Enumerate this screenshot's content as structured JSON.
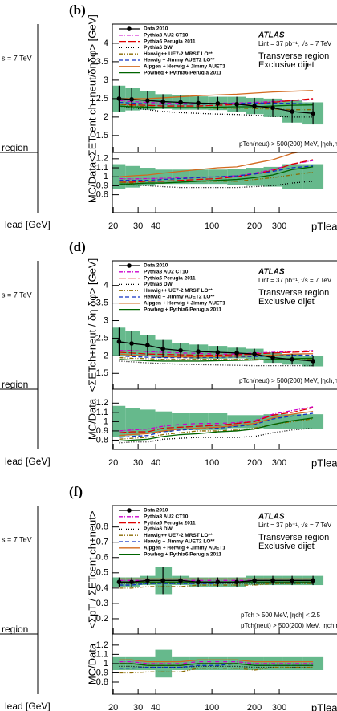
{
  "chart_data": [
    {
      "type": "line",
      "panel": "(b)",
      "ylabel": "<ΣETcent ch+neut/δηδφ> [GeV]",
      "xlabel": "pTlead [GeV]",
      "ratio_ylabel": "MC/Data",
      "atlas": [
        "ATLAS",
        "Lint = 37 pb⁻¹, √s = 7 TeV",
        "Transverse region",
        "Exclusive dijet"
      ],
      "cuts": [
        "pTch(neut) > 500(200) MeV, |ηch,neut| < 2.5"
      ],
      "xlog": true,
      "xlim": [
        19.7,
        900
      ],
      "xticks": [
        20,
        30,
        40,
        100,
        200,
        300
      ],
      "ylim": [
        1.04,
        4.52
      ],
      "yticks": [
        1.5,
        2,
        2.5,
        3,
        3.5,
        4
      ],
      "ratio_ylim": [
        0.6,
        1.27
      ],
      "ratio_yticks": [
        0.8,
        0.9,
        1,
        1.1,
        1.2
      ],
      "band_color": "#66b98c",
      "legend": "upper left",
      "x": [
        22,
        27,
        35,
        45,
        60,
        80,
        110,
        150,
        200,
        270,
        370,
        520
      ],
      "series": [
        {
          "name": "Data 2010",
          "color": "#000000",
          "values": [
            2.5,
            2.48,
            2.45,
            2.42,
            2.4,
            2.38,
            2.37,
            2.35,
            2.3,
            2.25,
            2.15,
            2.1
          ],
          "errors": [
            0.35,
            0.3,
            0.25,
            0.2,
            0.2,
            0.18,
            0.18,
            0.2,
            0.22,
            0.25,
            0.3,
            0.3
          ],
          "ratio_errors": [
            0.14,
            0.12,
            0.1,
            0.08,
            0.08,
            0.08,
            0.08,
            0.09,
            0.1,
            0.11,
            0.14,
            0.14
          ]
        },
        {
          "name": "Pythia8 AU2 CT10",
          "color": "#cc00cc",
          "dash": "5 2 1 2",
          "values": [
            2.45,
            2.42,
            2.4,
            2.38,
            2.37,
            2.37,
            2.38,
            2.38,
            2.4,
            2.42,
            2.45,
            2.47
          ],
          "ratio_values": [
            0.98,
            0.976,
            0.98,
            0.983,
            0.99,
            0.996,
            1.0,
            1.01,
            1.04,
            1.08,
            1.14,
            1.18
          ]
        },
        {
          "name": "Pythia6 Perugia 2011",
          "color": "#e00000",
          "dash": "9 3",
          "values": [
            2.35,
            2.33,
            2.32,
            2.3,
            2.3,
            2.3,
            2.32,
            2.34,
            2.36,
            2.4,
            2.45,
            2.5
          ],
          "ratio_values": [
            0.94,
            0.94,
            0.95,
            0.95,
            0.96,
            0.97,
            0.98,
            1.0,
            1.03,
            1.07,
            1.14,
            1.19
          ]
        },
        {
          "name": "Pythia6 DW",
          "color": "#000000",
          "dash": "1 2",
          "values": [
            2.3,
            2.25,
            2.2,
            2.15,
            2.12,
            2.1,
            2.08,
            2.07,
            2.05,
            2.02,
            2.0,
            2.0
          ],
          "ratio_values": [
            0.92,
            0.91,
            0.9,
            0.89,
            0.88,
            0.88,
            0.88,
            0.88,
            0.89,
            0.9,
            0.93,
            0.95
          ]
        },
        {
          "name": "Herwig++ UE7-2 MRST LO**",
          "color": "#8a6a00",
          "dash": "5 2 1 2 1 2",
          "values": [
            2.35,
            2.3,
            2.28,
            2.26,
            2.25,
            2.25,
            2.24,
            2.24,
            2.23,
            2.22,
            2.2,
            2.2
          ],
          "ratio_values": [
            0.94,
            0.93,
            0.93,
            0.93,
            0.94,
            0.95,
            0.95,
            0.95,
            0.97,
            0.99,
            1.02,
            1.05
          ]
        },
        {
          "name": "Herwig + Jimmy AUET2 LO**",
          "color": "#1030c0",
          "dash": "5 3",
          "values": [
            2.4,
            2.38,
            2.36,
            2.35,
            2.35,
            2.35,
            2.36,
            2.37,
            2.38,
            2.38,
            2.37,
            2.35
          ],
          "ratio_values": [
            0.96,
            0.96,
            0.96,
            0.97,
            0.98,
            0.99,
            1.0,
            1.01,
            1.03,
            1.06,
            1.1,
            1.12
          ]
        },
        {
          "name": "Alpgen + Herwig + Jimmy AUET1",
          "color": "#d2691e",
          "values": [
            2.5,
            2.5,
            2.5,
            2.52,
            2.55,
            2.58,
            2.6,
            2.62,
            2.65,
            2.68,
            2.7,
            2.72
          ],
          "ratio_values": [
            1.0,
            1.01,
            1.02,
            1.04,
            1.06,
            1.08,
            1.1,
            1.11,
            1.15,
            1.19,
            1.26,
            1.3
          ]
        },
        {
          "name": "Powheg + Pythia6 Perugia 2011",
          "color": "#006400",
          "values": [
            2.3,
            2.28,
            2.27,
            2.26,
            2.26,
            2.26,
            2.27,
            2.28,
            2.28,
            2.3,
            2.32,
            2.33
          ],
          "ratio_values": [
            0.92,
            0.92,
            0.93,
            0.93,
            0.94,
            0.95,
            0.96,
            0.97,
            0.99,
            1.02,
            1.08,
            1.11
          ]
        }
      ]
    },
    {
      "type": "line",
      "panel": "(d)",
      "ylabel": "<ΣETch+neut / δη δφ> [GeV]",
      "xlabel": "pTlead [GeV]",
      "ratio_ylabel": "MC/Data",
      "atlas": [
        "ATLAS",
        "Lint = 37 pb⁻¹, √s = 7 TeV",
        "Transverse region",
        "Exclusive dijet"
      ],
      "cuts": [
        "pTch(neut) > 500(200) MeV, |ηch,neut| < 4.8"
      ],
      "xlog": true,
      "xlim": [
        19.7,
        900
      ],
      "xticks": [
        20,
        30,
        40,
        100,
        200,
        300
      ],
      "ylim": [
        1.05,
        4.7
      ],
      "yticks": [
        1.5,
        2,
        2.5,
        3,
        3.5,
        4
      ],
      "ratio_ylim": [
        0.7,
        1.35
      ],
      "ratio_yticks": [
        0.8,
        0.9,
        1,
        1.1,
        1.2
      ],
      "band_color": "#66b98c",
      "legend": "upper left",
      "x": [
        22,
        27,
        35,
        45,
        60,
        80,
        110,
        150,
        200,
        270,
        370,
        520
      ],
      "series": [
        {
          "name": "Data 2010",
          "color": "#000000",
          "values": [
            2.4,
            2.35,
            2.3,
            2.2,
            2.15,
            2.12,
            2.1,
            2.08,
            2.05,
            1.95,
            1.9,
            1.85
          ],
          "errors": [
            0.4,
            0.35,
            0.3,
            0.25,
            0.2,
            0.2,
            0.18,
            0.15,
            0.15,
            0.15,
            0.15,
            0.15
          ],
          "ratio_errors": [
            0.17,
            0.15,
            0.13,
            0.11,
            0.09,
            0.09,
            0.09,
            0.07,
            0.07,
            0.08,
            0.08,
            0.08
          ]
        },
        {
          "name": "Pythia8 AU2 CT10",
          "color": "#cc00cc",
          "dash": "5 2 1 2",
          "values": [
            2.15,
            2.15,
            2.12,
            2.1,
            2.08,
            2.07,
            2.05,
            2.05,
            2.08,
            2.1,
            2.12,
            2.15
          ],
          "ratio_values": [
            0.9,
            0.91,
            0.92,
            0.95,
            0.97,
            0.98,
            0.98,
            0.99,
            1.01,
            1.08,
            1.12,
            1.16
          ]
        },
        {
          "name": "Pythia6 Perugia 2011",
          "color": "#e00000",
          "dash": "9 3",
          "values": [
            2.1,
            2.08,
            2.05,
            2.04,
            2.03,
            2.02,
            2.02,
            2.03,
            2.05,
            2.08,
            2.1,
            2.12
          ],
          "ratio_values": [
            0.88,
            0.89,
            0.89,
            0.93,
            0.94,
            0.95,
            0.96,
            0.98,
            1.0,
            1.07,
            1.1,
            1.15
          ]
        },
        {
          "name": "Pythia6 DW",
          "color": "#000000",
          "dash": "1 2",
          "values": [
            1.85,
            1.83,
            1.8,
            1.78,
            1.76,
            1.75,
            1.74,
            1.73,
            1.72,
            1.72,
            1.72,
            1.72
          ],
          "ratio_values": [
            0.77,
            0.78,
            0.78,
            0.81,
            0.82,
            0.83,
            0.83,
            0.83,
            0.84,
            0.88,
            0.91,
            0.93
          ]
        },
        {
          "name": "Herwig++ UE7-2 MRST LO**",
          "color": "#8a6a00",
          "dash": "5 2 1 2 1 2",
          "values": [
            1.95,
            1.93,
            1.92,
            1.9,
            1.9,
            1.9,
            1.9,
            1.9,
            1.9,
            1.9,
            1.9,
            1.9
          ],
          "ratio_values": [
            0.81,
            0.82,
            0.83,
            0.86,
            0.88,
            0.9,
            0.9,
            0.91,
            0.93,
            0.97,
            1.0,
            1.03
          ]
        },
        {
          "name": "Herwig + Jimmy AUET2 LO**",
          "color": "#1030c0",
          "dash": "5 3",
          "values": [
            2.0,
            1.98,
            1.96,
            1.95,
            1.95,
            1.95,
            1.96,
            1.97,
            1.98,
            2.0,
            2.02,
            2.02
          ],
          "ratio_values": [
            0.83,
            0.84,
            0.85,
            0.89,
            0.91,
            0.92,
            0.93,
            0.95,
            0.97,
            1.03,
            1.06,
            1.09
          ]
        },
        {
          "name": "Alpgen + Herwig + Jimmy AUET1",
          "color": "#d2691e",
          "values": [
            2.05,
            2.02,
            2.0,
            1.98,
            1.97,
            1.97,
            1.98,
            1.99,
            2.0,
            2.02,
            2.05,
            2.06
          ],
          "ratio_values": [
            0.85,
            0.86,
            0.87,
            0.9,
            0.92,
            0.93,
            0.94,
            0.96,
            0.98,
            1.04,
            1.08,
            1.11
          ]
        },
        {
          "name": "Powheg + Pythia6 Perugia 2011",
          "color": "#006400",
          "values": [
            1.9,
            1.88,
            1.86,
            1.85,
            1.85,
            1.85,
            1.86,
            1.87,
            1.88,
            1.9,
            1.92,
            1.93
          ],
          "ratio_values": [
            0.79,
            0.8,
            0.81,
            0.84,
            0.86,
            0.87,
            0.89,
            0.9,
            0.92,
            0.97,
            1.01,
            1.04
          ]
        }
      ]
    },
    {
      "type": "line",
      "panel": "(f)",
      "ylabel": "<ΣpT / ΣETcent ch+neut>",
      "xlabel": "pTlead [GeV]",
      "ratio_ylabel": "MC/Data",
      "atlas": [
        "ATLAS",
        "Lint = 37 pb⁻¹, √s = 7 TeV",
        "Transverse region",
        "Exclusive dijet"
      ],
      "cuts": [
        "pTch > 500 MeV, |ηch| < 2.5",
        "pTch(neut) > 500(200) MeV, |ηch,neut| < 2.5"
      ],
      "xlog": true,
      "xlim": [
        19.7,
        900
      ],
      "xticks": [
        20,
        30,
        40,
        100,
        200,
        300
      ],
      "ylim": [
        0.1,
        0.94
      ],
      "yticks": [
        0.2,
        0.3,
        0.4,
        0.5,
        0.6,
        0.7,
        0.8
      ],
      "ratio_ylim": [
        0.67,
        1.32
      ],
      "ratio_yticks": [
        0.8,
        0.9,
        1,
        1.1,
        1.2
      ],
      "band_color": "#66b98c",
      "legend": "upper left",
      "x": [
        22,
        27,
        35,
        45,
        60,
        80,
        110,
        150,
        200,
        270,
        370,
        520
      ],
      "series": [
        {
          "name": "Data 2010",
          "color": "#000000",
          "values": [
            0.44,
            0.44,
            0.45,
            0.45,
            0.45,
            0.44,
            0.44,
            0.44,
            0.45,
            0.45,
            0.45,
            0.45
          ],
          "errors": [
            0.03,
            0.03,
            0.03,
            0.09,
            0.03,
            0.03,
            0.03,
            0.03,
            0.03,
            0.03,
            0.03,
            0.03
          ],
          "ratio_errors": [
            0.07,
            0.07,
            0.07,
            0.15,
            0.07,
            0.07,
            0.07,
            0.07,
            0.07,
            0.07,
            0.07,
            0.07
          ]
        },
        {
          "name": "Pythia8 AU2 CT10",
          "color": "#cc00cc",
          "dash": "5 2 1 2",
          "values": [
            0.45,
            0.45,
            0.45,
            0.45,
            0.45,
            0.45,
            0.45,
            0.45,
            0.45,
            0.45,
            0.45,
            0.45
          ],
          "ratio_values": [
            1.02,
            1.02,
            1.0,
            1.0,
            1.0,
            1.02,
            1.02,
            1.02,
            1.0,
            1.0,
            1.0,
            1.0
          ]
        },
        {
          "name": "Pythia6 Perugia 2011",
          "color": "#e00000",
          "dash": "9 3",
          "values": [
            0.44,
            0.44,
            0.44,
            0.44,
            0.44,
            0.44,
            0.44,
            0.44,
            0.44,
            0.44,
            0.44,
            0.44
          ],
          "ratio_values": [
            1.0,
            1.0,
            0.98,
            0.98,
            0.98,
            1.0,
            1.0,
            1.0,
            0.98,
            0.98,
            0.98,
            0.98
          ]
        },
        {
          "name": "Pythia6 DW",
          "color": "#000000",
          "dash": "1 2",
          "values": [
            0.43,
            0.43,
            0.43,
            0.43,
            0.43,
            0.43,
            0.43,
            0.43,
            0.43,
            0.43,
            0.43,
            0.43
          ],
          "ratio_values": [
            0.97,
            0.97,
            0.96,
            0.96,
            0.96,
            0.97,
            0.97,
            0.97,
            0.96,
            0.96,
            0.96,
            0.96
          ]
        },
        {
          "name": "Herwig++ UE7-2 MRST LO**",
          "color": "#8a6a00",
          "dash": "5 2 1 2 1 2",
          "values": [
            0.4,
            0.4,
            0.41,
            0.41,
            0.41,
            0.42,
            0.42,
            0.42,
            0.42,
            0.43,
            0.43,
            0.43
          ],
          "ratio_values": [
            0.9,
            0.9,
            0.91,
            0.91,
            0.91,
            0.95,
            0.95,
            0.95,
            0.93,
            0.96,
            0.96,
            0.96
          ]
        },
        {
          "name": "Herwig + Jimmy AUET2 LO**",
          "color": "#1030c0",
          "dash": "5 3",
          "values": [
            0.42,
            0.42,
            0.43,
            0.43,
            0.43,
            0.43,
            0.43,
            0.44,
            0.44,
            0.44,
            0.44,
            0.44
          ],
          "ratio_values": [
            0.95,
            0.95,
            0.96,
            0.96,
            0.96,
            0.98,
            0.98,
            1.0,
            0.98,
            0.98,
            0.98,
            0.98
          ]
        },
        {
          "name": "Alpgen + Herwig + Jimmy AUET1",
          "color": "#d2691e",
          "values": [
            0.46,
            0.46,
            0.46,
            0.46,
            0.46,
            0.46,
            0.46,
            0.46,
            0.46,
            0.46,
            0.46,
            0.46
          ],
          "ratio_values": [
            1.04,
            1.04,
            1.02,
            1.02,
            1.02,
            1.04,
            1.04,
            1.04,
            1.02,
            1.02,
            1.02,
            1.02
          ]
        },
        {
          "name": "Powheg + Pythia6 Perugia 2011",
          "color": "#006400",
          "values": [
            0.44,
            0.44,
            0.44,
            0.44,
            0.44,
            0.44,
            0.44,
            0.44,
            0.44,
            0.44,
            0.44,
            0.44
          ],
          "ratio_values": [
            1.0,
            1.0,
            0.98,
            0.98,
            0.98,
            1.0,
            1.0,
            1.0,
            0.98,
            0.98,
            0.98,
            0.98
          ]
        }
      ]
    }
  ],
  "left_fragments": [
    [
      "s = 7 TeV",
      "region",
      "lead [GeV]"
    ],
    [
      "s = 7 TeV",
      "region",
      "lead [GeV]"
    ],
    [
      "s = 7 TeV",
      "region",
      "lead [GeV]"
    ]
  ]
}
